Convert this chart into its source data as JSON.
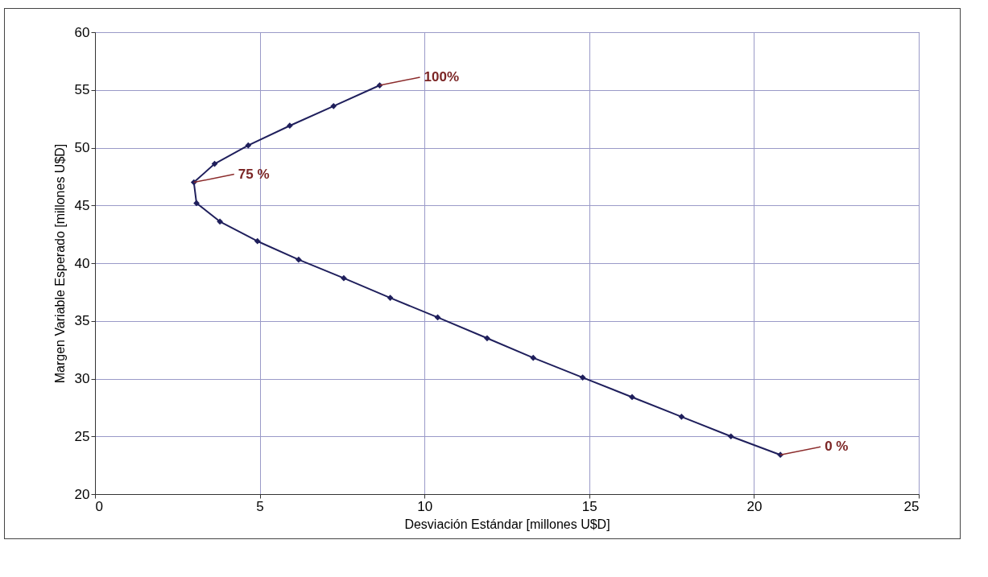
{
  "chart_data": {
    "type": "line",
    "xlabel": "Desviación Estándar [millones U$D]",
    "ylabel": "Margen Variable Esperado [millones U$D]",
    "series": [
      {
        "color": "#1f1f5c",
        "x": [
          8.64,
          7.24,
          5.91,
          4.65,
          3.63,
          3.0,
          3.08,
          3.79,
          4.93,
          6.18,
          7.55,
          8.96,
          10.4,
          11.9,
          13.3,
          14.8,
          16.3,
          17.8,
          19.3,
          20.8
        ],
        "values": [
          55.4,
          53.6,
          51.9,
          50.2,
          48.6,
          47.0,
          45.2,
          43.6,
          41.9,
          40.3,
          38.7,
          37.0,
          35.3,
          33.5,
          31.8,
          30.1,
          28.4,
          26.7,
          25.0,
          23.4
        ]
      }
    ],
    "xlim": [
      0,
      25
    ],
    "xticks": [
      0,
      5,
      10,
      15,
      20,
      25
    ],
    "ylim": [
      20,
      60
    ],
    "yticks": [
      20,
      25,
      30,
      35,
      40,
      45,
      50,
      55,
      60
    ],
    "grid": true,
    "marker": "diamond",
    "annotations": [
      {
        "text": "100%",
        "x": 8.64,
        "y": 55.4
      },
      {
        "text": "75 %",
        "x": 3.0,
        "y": 47.0
      },
      {
        "text": "0 %",
        "x": 20.8,
        "y": 23.4
      }
    ]
  }
}
